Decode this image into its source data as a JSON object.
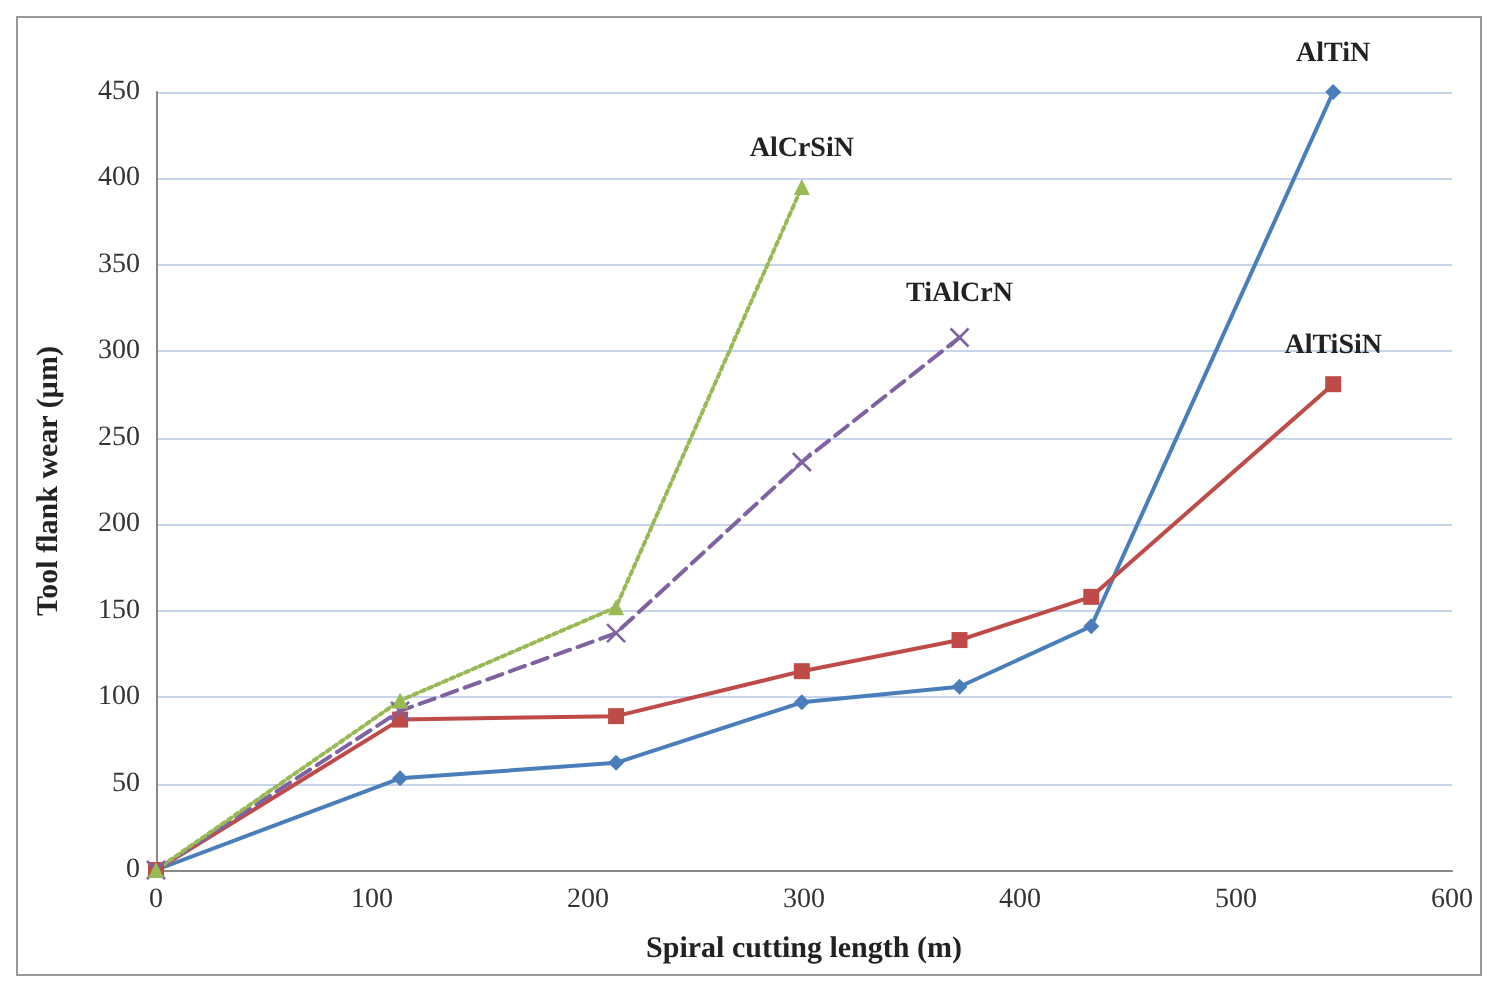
{
  "chart_data": {
    "type": "line",
    "xlabel": "Spiral cutting length (m)",
    "ylabel": "Tool flank wear (µm)",
    "xlim": [
      0,
      600
    ],
    "xticks": [
      0,
      100,
      200,
      300,
      400,
      500,
      600
    ],
    "ylim": [
      0,
      450
    ],
    "yticks": [
      0,
      50,
      100,
      150,
      200,
      250,
      300,
      350,
      400,
      450
    ],
    "grid": "y",
    "series": [
      {
        "name": "AlTiN",
        "color": "#4a7ebb",
        "marker": "diamond",
        "line_style": "solid",
        "x": [
          0,
          113,
          213,
          299,
          372,
          433,
          545
        ],
        "values": [
          0,
          53,
          62,
          97,
          106,
          141,
          450
        ]
      },
      {
        "name": "AlTiSiN",
        "color": "#be4b48",
        "marker": "square",
        "line_style": "solid",
        "x": [
          0,
          113,
          213,
          299,
          372,
          433,
          545
        ],
        "values": [
          0,
          87,
          89,
          115,
          133,
          158,
          281
        ]
      },
      {
        "name": "TiAlCrN",
        "color": "#7e62a1",
        "marker": "cross",
        "line_style": "dashed",
        "x": [
          0,
          113,
          213,
          299,
          372
        ],
        "values": [
          0,
          92,
          137,
          236,
          308
        ]
      },
      {
        "name": "AlCrSiN",
        "color": "#98b954",
        "marker": "triangle",
        "line_style": "dotted",
        "x": [
          0,
          113,
          213,
          299
        ],
        "values": [
          0,
          98,
          152,
          395
        ]
      }
    ]
  }
}
